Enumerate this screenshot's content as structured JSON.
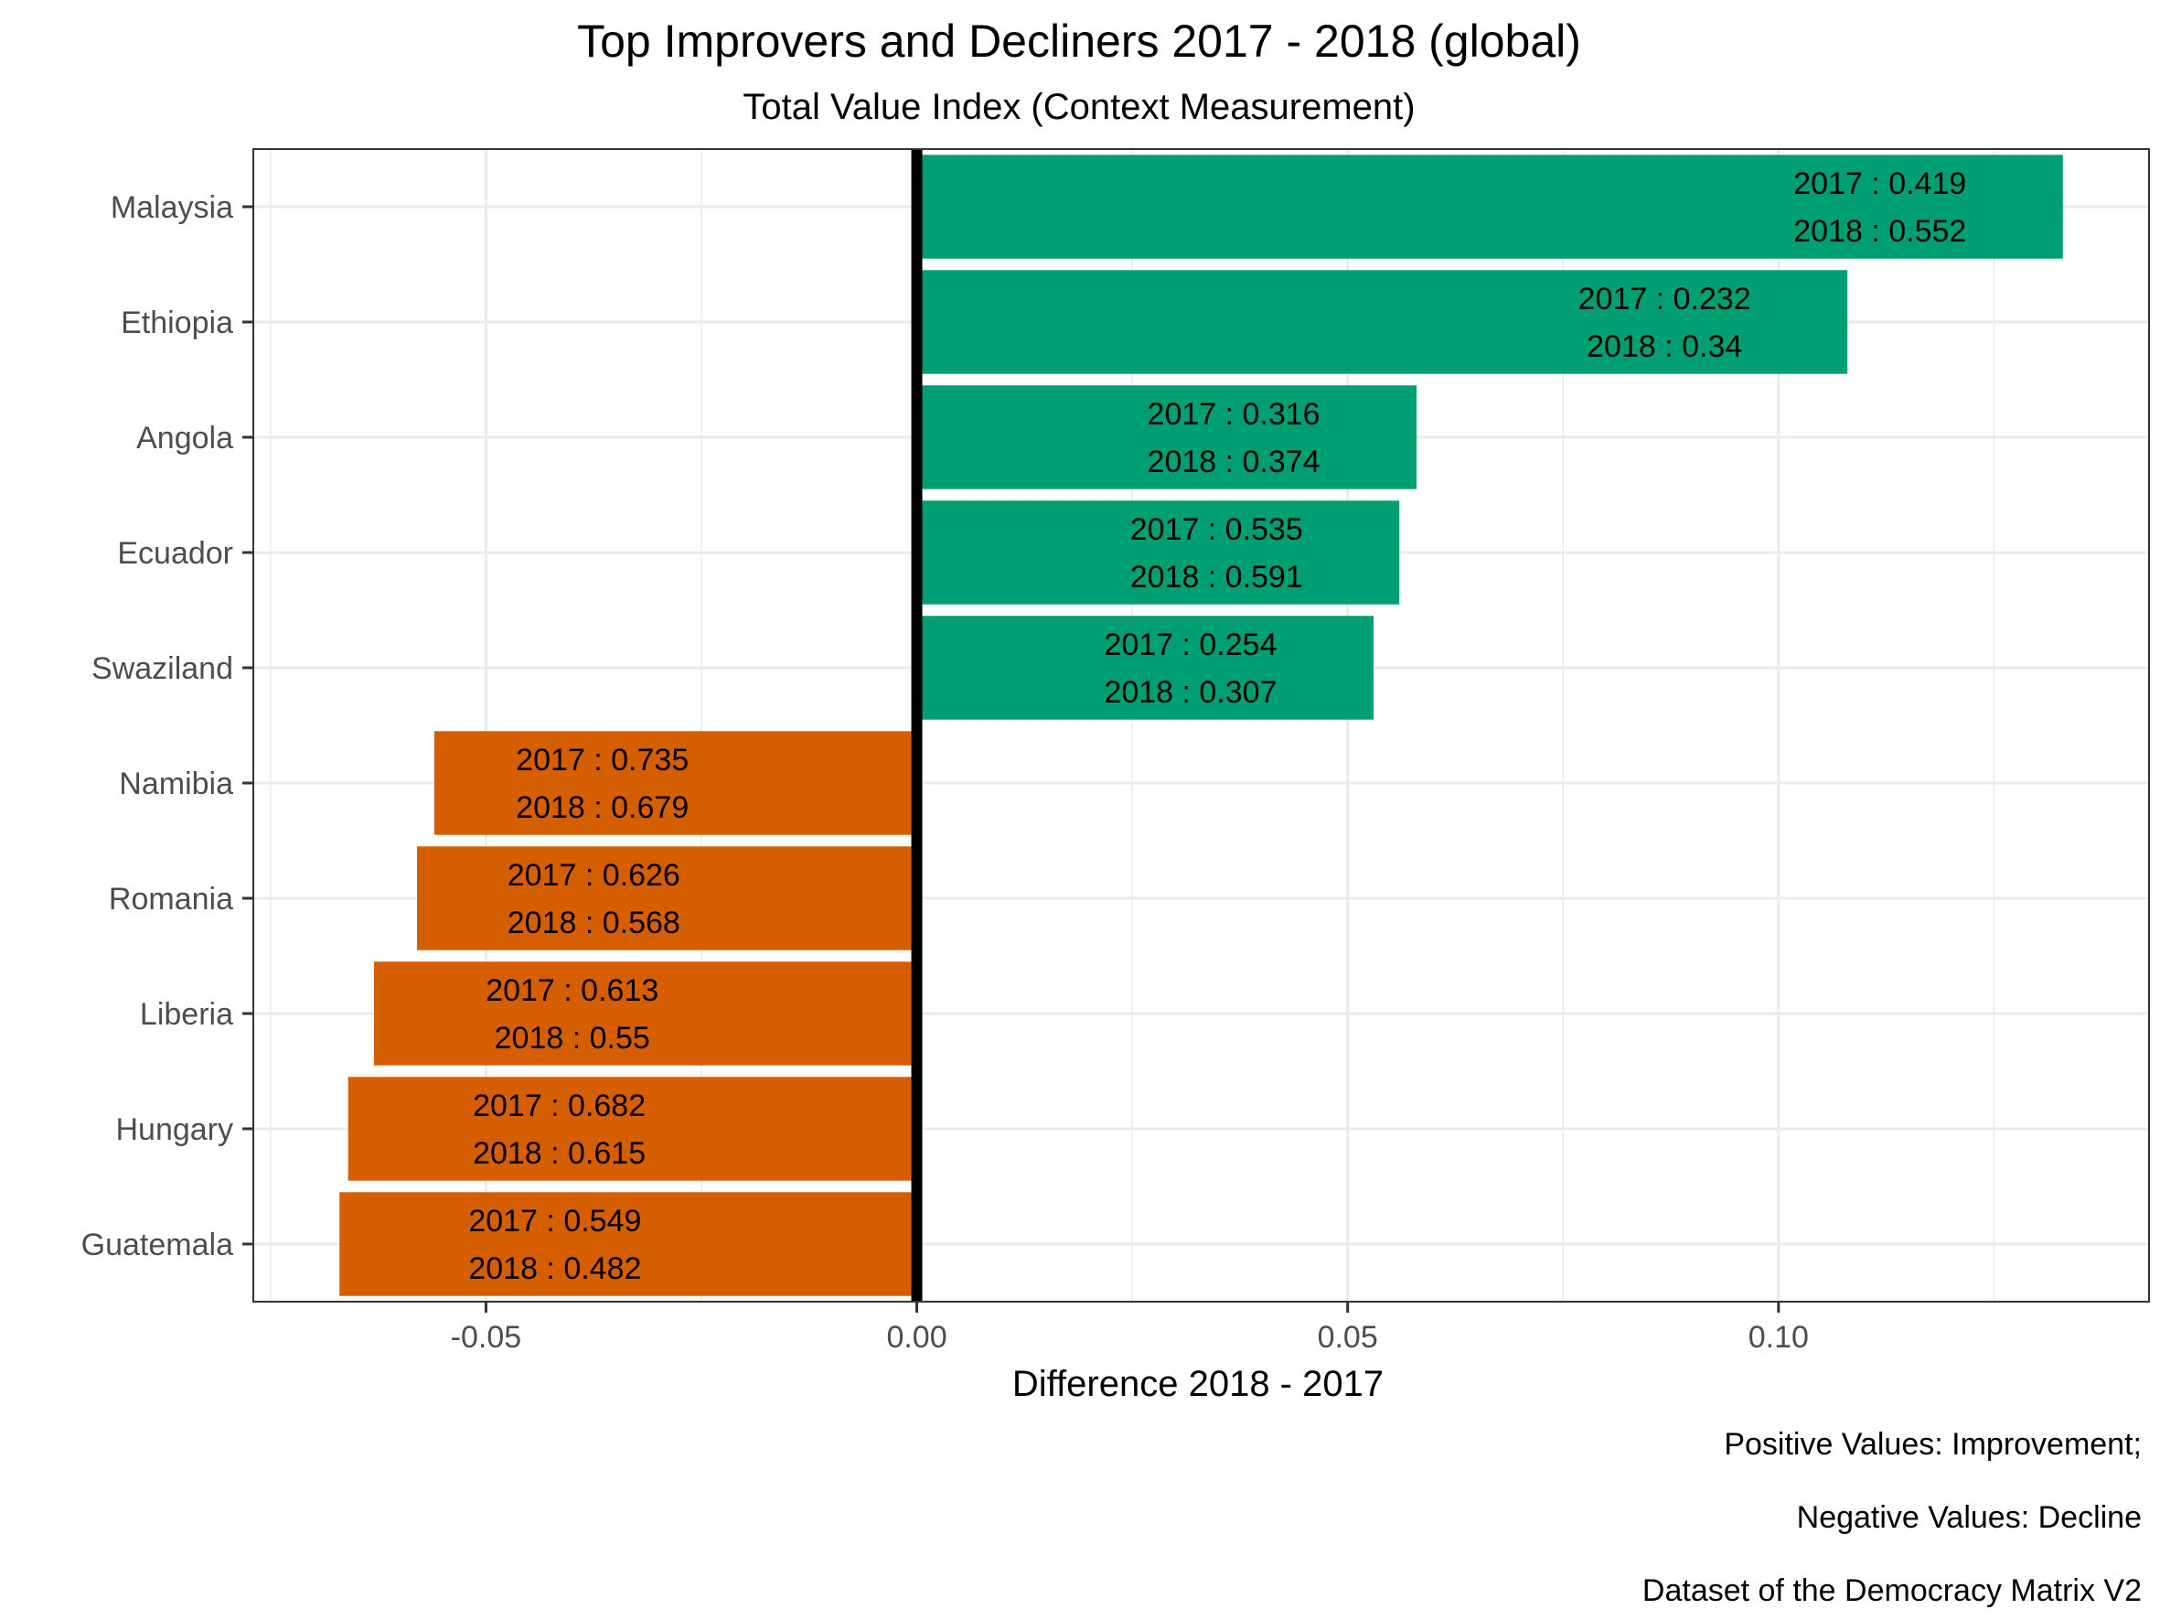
{
  "chart_data": {
    "type": "bar",
    "orientation": "horizontal",
    "title": "Top Improvers and Decliners 2017 - 2018 (global)",
    "subtitle": "Total Value Index (Context Measurement)",
    "xlabel": "Difference 2018 - 2017",
    "ylabel": "",
    "xlim": [
      -0.077,
      0.143
    ],
    "x_ticks": [
      -0.05,
      0.0,
      0.05,
      0.1
    ],
    "x_tick_labels": [
      "-0.05",
      "0.00",
      "0.05",
      "0.10"
    ],
    "grid": true,
    "legend": "none",
    "colors": {
      "positive": "#009E73",
      "negative": "#D55E00",
      "zero_line": "#000000",
      "grid": "#EBEBEB",
      "panel_border": "#333333"
    },
    "categories": [
      "Malaysia",
      "Ethiopia",
      "Angola",
      "Ecuador",
      "Swaziland",
      "Namibia",
      "Romania",
      "Liberia",
      "Hungary",
      "Guatemala"
    ],
    "values": [
      0.133,
      0.108,
      0.058,
      0.056,
      0.053,
      -0.056,
      -0.058,
      -0.063,
      -0.066,
      -0.067
    ],
    "labels_2017": [
      "2017 : 0.419",
      "2017 : 0.232",
      "2017 : 0.316",
      "2017 : 0.535",
      "2017 : 0.254",
      "2017 : 0.735",
      "2017 : 0.626",
      "2017 : 0.613",
      "2017 : 0.682",
      "2017 : 0.549"
    ],
    "labels_2018": [
      "2018 : 0.552",
      "2018 : 0.34",
      "2018 : 0.374",
      "2018 : 0.591",
      "2018 : 0.307",
      "2018 : 0.679",
      "2018 : 0.568",
      "2018 : 0.55",
      "2018 : 0.615",
      "2018 : 0.482"
    ],
    "caption": [
      "Positive Values: Improvement;",
      "Negative Values: Decline",
      "Dataset of the Democracy Matrix V2"
    ]
  }
}
